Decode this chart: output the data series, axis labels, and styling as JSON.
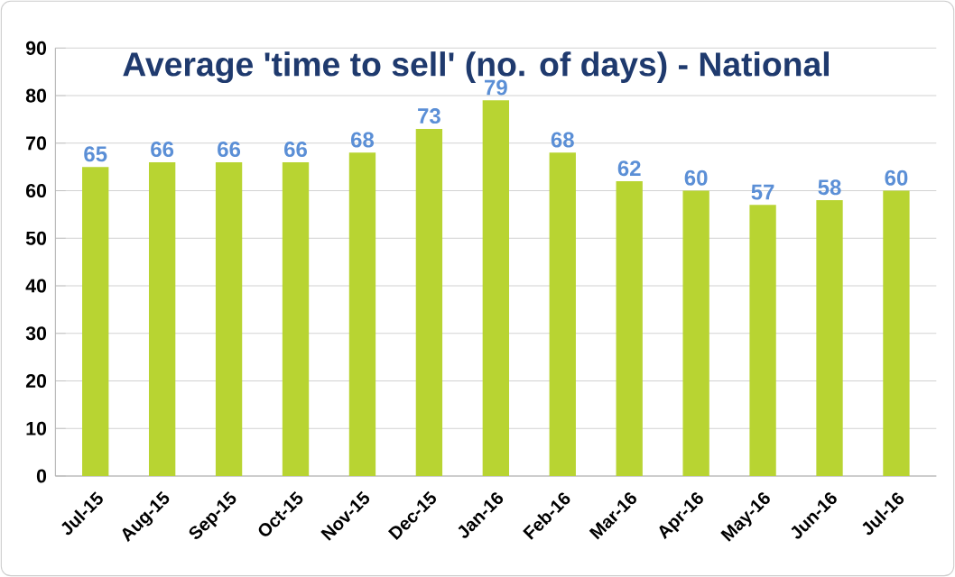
{
  "chart_data": {
    "type": "bar",
    "title": "Average 'time to sell' (no. of days) - National",
    "categories": [
      "Jul-15",
      "Aug-15",
      "Sep-15",
      "Oct-15",
      "Nov-15",
      "Dec-15",
      "Jan-16",
      "Feb-16",
      "Mar-16",
      "Apr-16",
      "May-16",
      "Jun-16",
      "Jul-16"
    ],
    "values": [
      65,
      66,
      66,
      66,
      68,
      73,
      79,
      68,
      62,
      60,
      57,
      58,
      60
    ],
    "color": "#b8d432",
    "ylim": [
      0,
      90
    ],
    "yticks": [
      0,
      10,
      20,
      30,
      40,
      50,
      60,
      70,
      80,
      90
    ],
    "grid": "y",
    "data_labels": true
  }
}
